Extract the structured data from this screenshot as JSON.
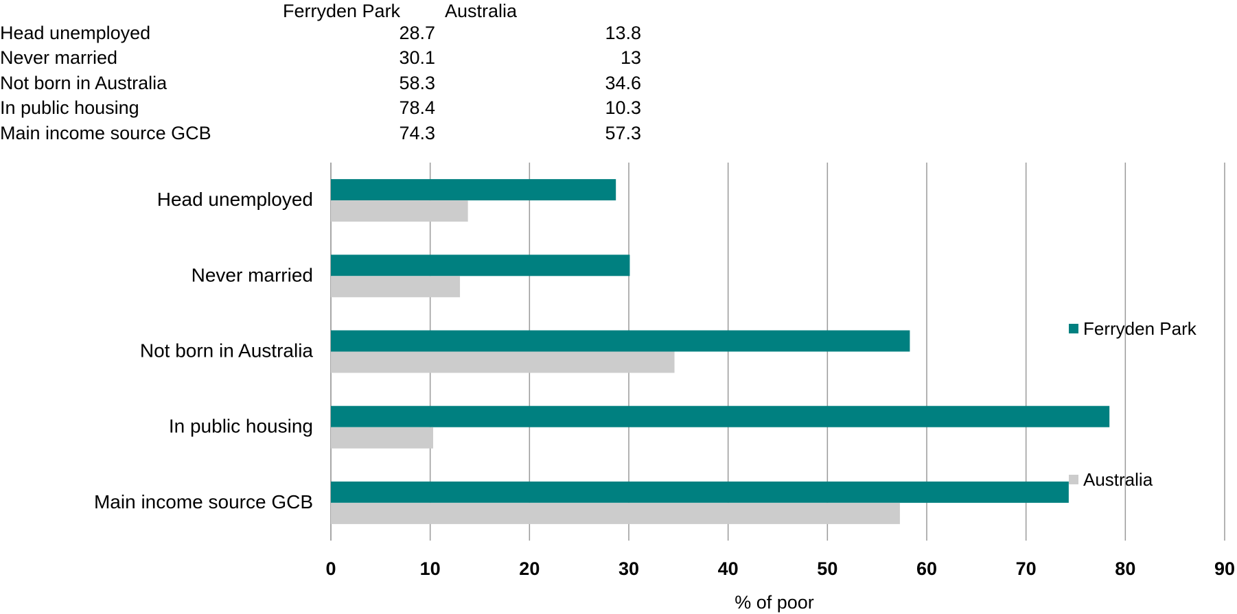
{
  "table": {
    "columns": [
      "Ferryden Park",
      "Australia"
    ],
    "rows": [
      {
        "label": "Head unemployed",
        "values": [
          "28.7",
          "13.8"
        ]
      },
      {
        "label": "Never married",
        "values": [
          "30.1",
          "13"
        ]
      },
      {
        "label": "Not born in Australia",
        "values": [
          "58.3",
          "34.6"
        ]
      },
      {
        "label": "In public housing",
        "values": [
          "78.4",
          "10.3"
        ]
      },
      {
        "label": "Main income source GCB",
        "values": [
          "74.3",
          "57.3"
        ]
      }
    ]
  },
  "chart_data": {
    "type": "bar",
    "orientation": "horizontal",
    "title": "",
    "categories": [
      "Head unemployed",
      "Never married",
      "Not born in Australia",
      "In public housing",
      "Main income source GCB"
    ],
    "series": [
      {
        "name": "Ferryden Park",
        "values": [
          28.7,
          30.1,
          58.3,
          78.4,
          74.3
        ],
        "color": "#008080"
      },
      {
        "name": "Australia",
        "values": [
          13.8,
          13,
          34.6,
          10.3,
          57.3
        ],
        "color": "#cccccc"
      }
    ],
    "xlabel": "% of poor",
    "ylabel": "",
    "xlim": [
      0,
      90
    ],
    "xticks": [
      "0",
      "10",
      "20",
      "30",
      "40",
      "50",
      "60",
      "70",
      "80",
      "90"
    ],
    "grid": true,
    "legend": "right"
  }
}
